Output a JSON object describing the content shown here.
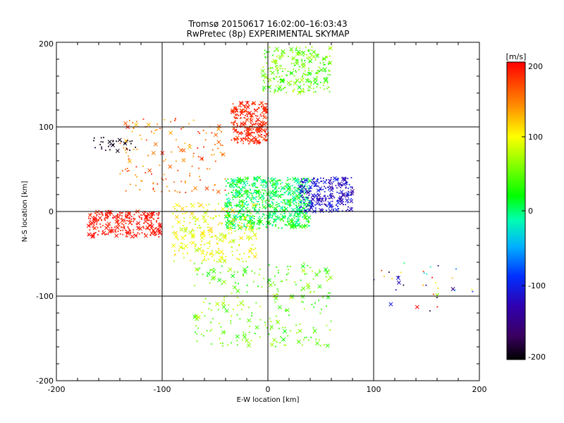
{
  "chart_data": {
    "type": "scatter",
    "title": "Tromsø 20150617 16:02:00–16:03:43",
    "subtitle": "RwPretec (8p) EXPERIMENTAL SKYMAP",
    "xlabel": "E-W location [km]",
    "ylabel": "N-S location [km]",
    "xlim": [
      -200,
      200
    ],
    "ylim": [
      -200,
      200
    ],
    "xticks": [
      "-200",
      "-100",
      "0",
      "100",
      "200"
    ],
    "yticks": [
      "-200",
      "-100",
      "0",
      "100",
      "200"
    ],
    "grid": true,
    "markers": [
      "dot",
      "x"
    ],
    "colorbar": {
      "label": "[m/s]",
      "range": [
        -200,
        200
      ],
      "ticks": [
        "200",
        "100",
        "0",
        "-100",
        "-200"
      ],
      "colormap": "black-purple-blue-cyan-green-yellow-orange-red"
    },
    "clusters": [
      {
        "region": "north arc",
        "x": [
          -5,
          60
        ],
        "y": [
          140,
          195
        ],
        "velocity_mps": [
          20,
          80
        ],
        "density": "high"
      },
      {
        "region": "north red plume",
        "x": [
          -35,
          0
        ],
        "y": [
          80,
          130
        ],
        "velocity_mps": [
          170,
          200
        ],
        "density": "high"
      },
      {
        "region": "west red patch",
        "x": [
          -170,
          -100
        ],
        "y": [
          -30,
          0
        ],
        "velocity_mps": [
          180,
          200
        ],
        "density": "high"
      },
      {
        "region": "northwest orange",
        "x": [
          -140,
          -40
        ],
        "y": [
          20,
          110
        ],
        "velocity_mps": [
          120,
          190
        ],
        "density": "medium"
      },
      {
        "region": "central green",
        "x": [
          -40,
          40
        ],
        "y": [
          -20,
          40
        ],
        "velocity_mps": [
          -20,
          40
        ],
        "density": "very high"
      },
      {
        "region": "central yellow",
        "x": [
          -90,
          -10
        ],
        "y": [
          -60,
          10
        ],
        "velocity_mps": [
          70,
          120
        ],
        "density": "high"
      },
      {
        "region": "east blue",
        "x": [
          30,
          80
        ],
        "y": [
          0,
          40
        ],
        "velocity_mps": [
          -140,
          -90
        ],
        "density": "high"
      },
      {
        "region": "south green",
        "x": [
          -70,
          60
        ],
        "y": [
          -160,
          -60
        ],
        "velocity_mps": [
          20,
          80
        ],
        "density": "high"
      },
      {
        "region": "southeast red/black",
        "x": [
          100,
          200
        ],
        "y": [
          -120,
          -60
        ],
        "velocity_mps": [
          -200,
          200
        ],
        "density": "low"
      },
      {
        "region": "northwest black line",
        "x": [
          -165,
          -125
        ],
        "y": [
          70,
          88
        ],
        "velocity_mps": [
          -200,
          -180
        ],
        "density": "low"
      }
    ]
  }
}
